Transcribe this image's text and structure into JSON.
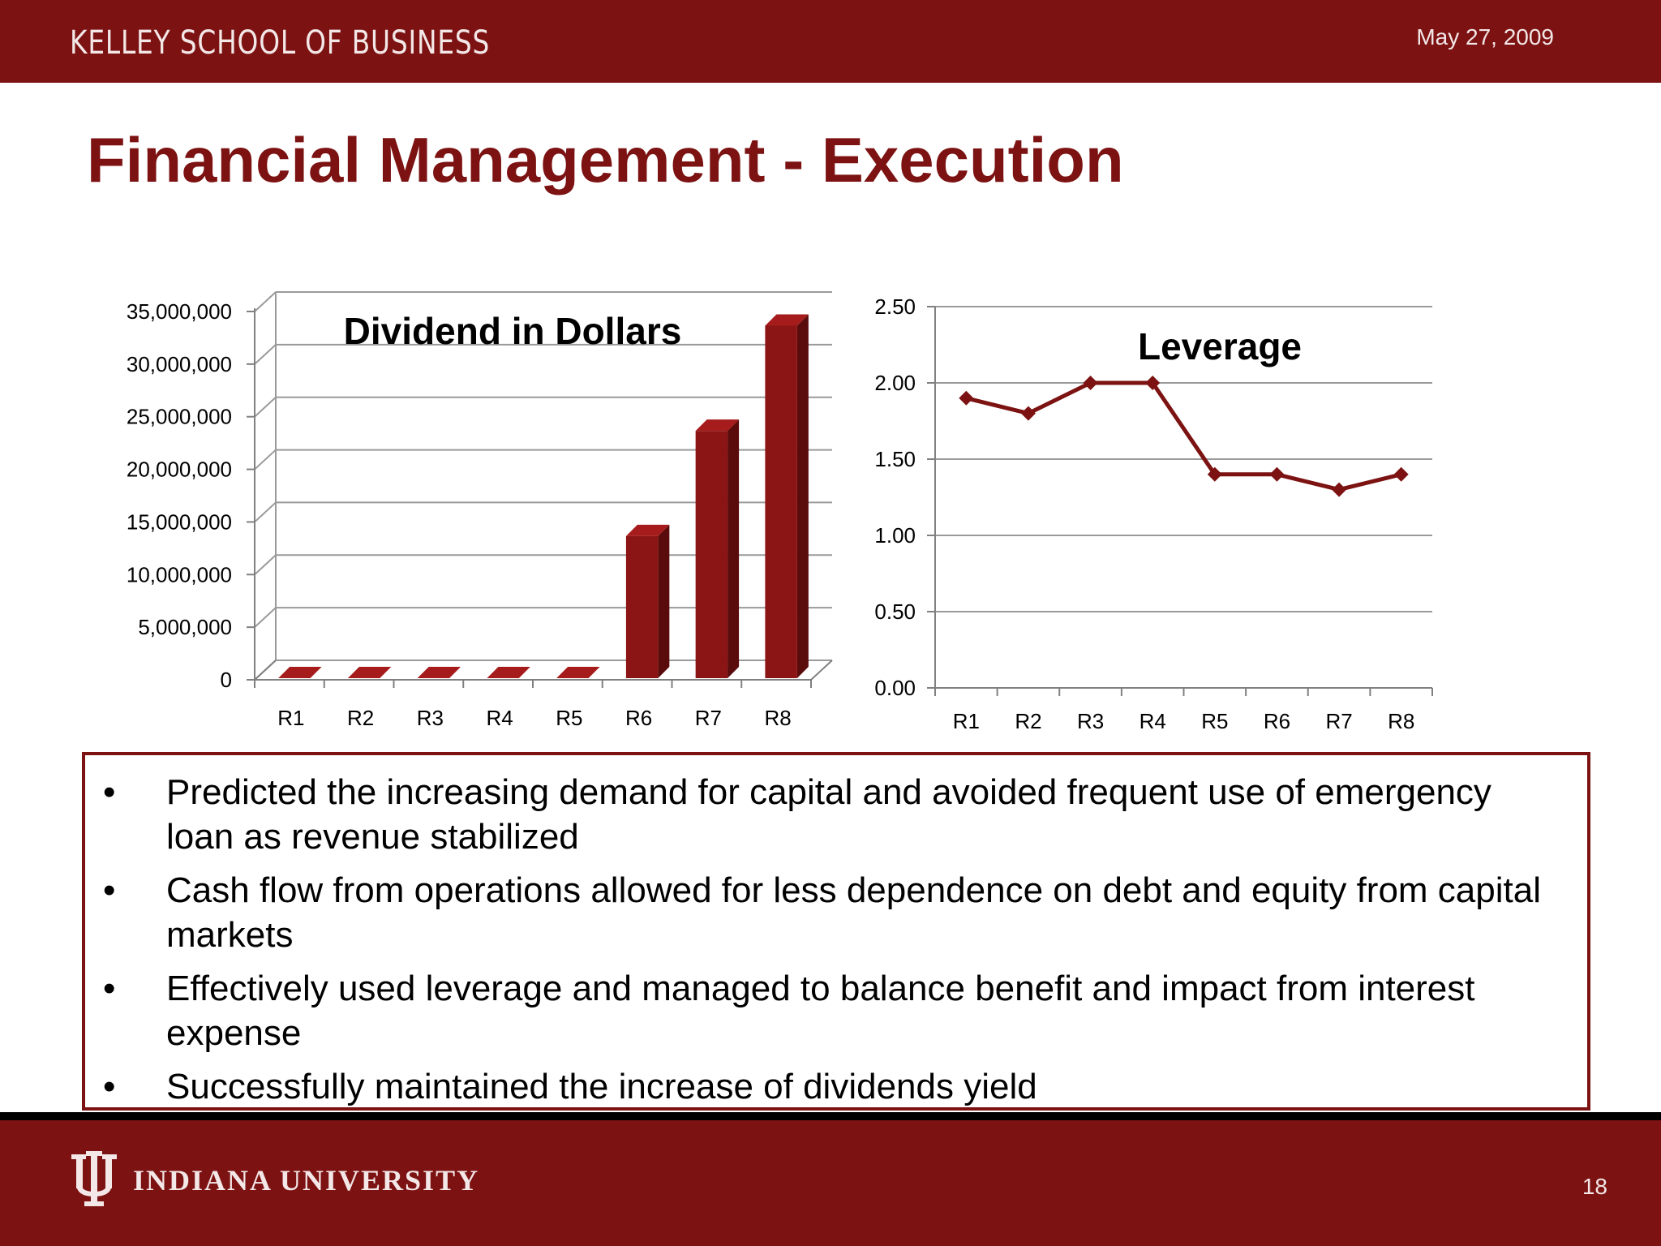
{
  "header": {
    "school_name": "KELLEY SCHOOL OF BUSINESS",
    "date": "May 27, 2009"
  },
  "slide": {
    "title": "Financial Management - Execution",
    "page_number": "18"
  },
  "footer": {
    "university_name": "INDIANA UNIVERSITY"
  },
  "bullets": [
    "Predicted the increasing demand for capital and avoided frequent use of emergency loan as revenue stabilized",
    "Cash flow from operations allowed for less dependence on debt and equity from capital markets",
    "Effectively used leverage and managed to balance benefit and impact from interest expense",
    "Successfully maintained the increase of dividends yield"
  ],
  "colors": {
    "brand_crimson": "#7c1212",
    "bar_fill": "#8b1414",
    "line_color": "#7c1212"
  },
  "chart_data": [
    {
      "type": "bar",
      "title": "Dividend in Dollars",
      "categories": [
        "R1",
        "R2",
        "R3",
        "R4",
        "R5",
        "R6",
        "R7",
        "R8"
      ],
      "values": [
        0,
        0,
        0,
        0,
        0,
        13500000,
        23500000,
        33500000
      ],
      "yticks": [
        "0",
        "5,000,000",
        "10,000,000",
        "15,000,000",
        "20,000,000",
        "25,000,000",
        "30,000,000",
        "35,000,000"
      ],
      "ylim": [
        0,
        35000000
      ],
      "grid": true,
      "legend": "none",
      "style": "3d-column"
    },
    {
      "type": "line",
      "title": "Leverage",
      "categories": [
        "R1",
        "R2",
        "R3",
        "R4",
        "R5",
        "R6",
        "R7",
        "R8"
      ],
      "values": [
        1.9,
        1.8,
        2.0,
        2.0,
        1.4,
        1.4,
        1.3,
        1.4
      ],
      "yticks": [
        "0.00",
        "0.50",
        "1.00",
        "1.50",
        "2.00",
        "2.50"
      ],
      "ylim": [
        0,
        2.5
      ],
      "grid": true,
      "legend": "none",
      "marker": "diamond"
    }
  ]
}
